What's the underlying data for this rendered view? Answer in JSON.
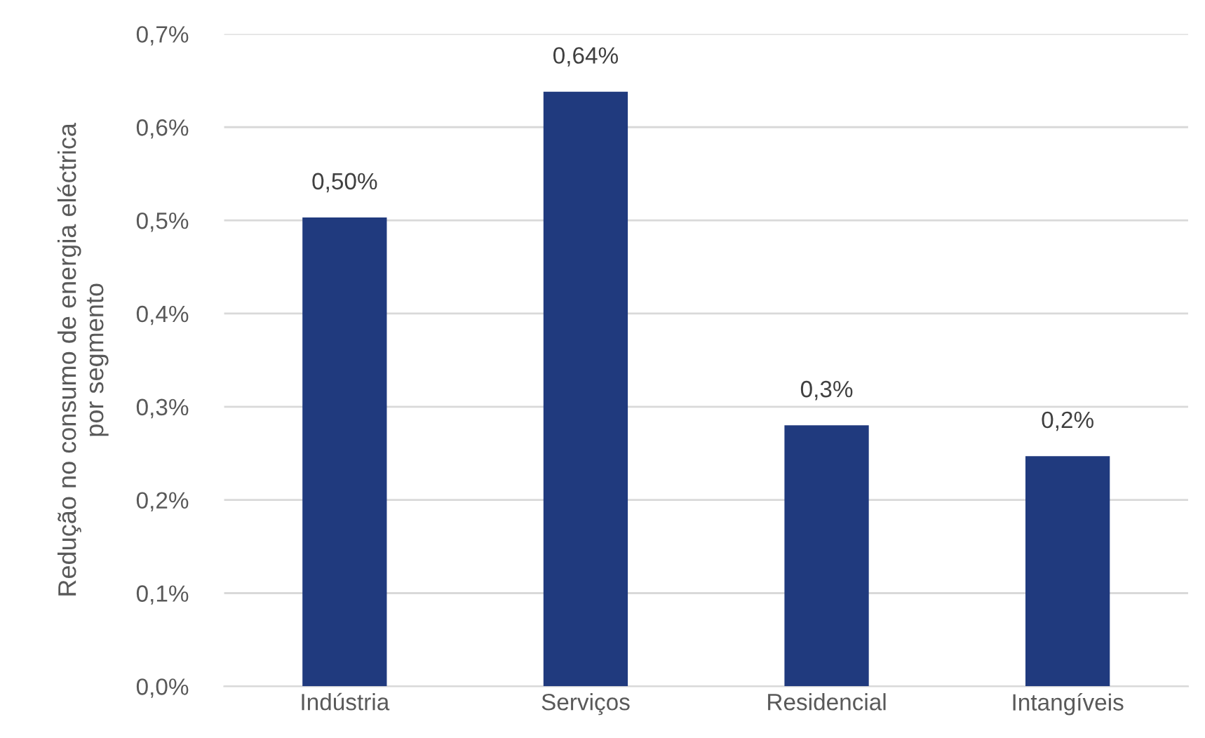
{
  "chart_data": {
    "type": "bar",
    "ylabel": "Redução no consumo de energia eléctrica\npor segmento",
    "categories": [
      "Indústria",
      "Serviços",
      "Residencial",
      "Intangíveis"
    ],
    "values": [
      0.503,
      0.638,
      0.28,
      0.247
    ],
    "value_labels": [
      "0,50%",
      "0,64%",
      "0,3%",
      "0,2%"
    ],
    "color": "#203a7e",
    "ylim": [
      0,
      0.7
    ],
    "yticks": [
      {
        "value": 0,
        "label": "0,0%"
      },
      {
        "value": 0.1,
        "label": "0,1%"
      },
      {
        "value": 0.2,
        "label": "0,2%"
      },
      {
        "value": 0.3,
        "label": "0,3%"
      },
      {
        "value": 0.4,
        "label": "0,4%"
      },
      {
        "value": 0.5,
        "label": "0,5%"
      },
      {
        "value": 0.6,
        "label": "0,6%"
      },
      {
        "value": 0.7,
        "label": "0,7%"
      }
    ],
    "grid": "y",
    "legend": false
  }
}
